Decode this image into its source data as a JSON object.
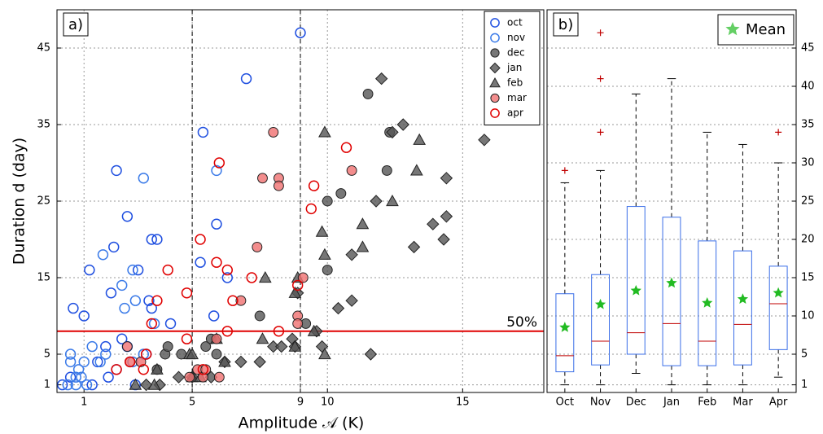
{
  "chart_data": [
    {
      "type": "scatter",
      "label": "a)",
      "xlabel": "Amplitude 𝒜 (K)",
      "ylabel": "Duration d (day)",
      "xlim": [
        0,
        18
      ],
      "ylim": [
        0,
        50
      ],
      "xticks": [
        1,
        5,
        9,
        10,
        15
      ],
      "yticks": [
        1,
        5,
        15,
        25,
        35,
        45
      ],
      "grid": true,
      "vlines": [
        5,
        9
      ],
      "hline": {
        "value": 8,
        "label": "50%",
        "color": "#e00000"
      },
      "legend": "upper right",
      "series": [
        {
          "name": "oct",
          "marker": "circle",
          "filled": false,
          "color": "#1f4fe0",
          "x": [
            9,
            7,
            5.4,
            2.2,
            5.9,
            2.6,
            1.2,
            2.1,
            3.5,
            3.7,
            2.0,
            3.4,
            3.5,
            0.6,
            1.0,
            0.5,
            1.3,
            0.2,
            2.9,
            1.5,
            2.4,
            4.2,
            1.8,
            3.3,
            5.8,
            6.3,
            5.3,
            3.0,
            2.6,
            1.9
          ],
          "values": [
            47,
            41,
            34,
            29,
            22,
            23,
            16,
            19,
            20,
            20,
            13,
            12,
            11,
            11,
            10,
            2,
            1,
            1,
            1,
            4,
            7,
            9,
            6,
            5,
            10,
            15,
            17,
            16,
            6,
            2
          ]
        },
        {
          "name": "nov",
          "marker": "circle",
          "filled": false,
          "color": "#3a7ae8",
          "x": [
            3.2,
            5.9,
            2.4,
            1.7,
            2.8,
            3.6,
            1.1,
            0.7,
            0.4,
            0.8,
            0.5,
            1.0,
            1.6,
            2.2,
            2.8,
            3.2,
            0.5,
            0.7,
            1.8,
            2.5,
            2.9,
            2.7,
            0.9,
            1.3
          ],
          "values": [
            28,
            29,
            14,
            18,
            16,
            9,
            1,
            1,
            1,
            3,
            4,
            4,
            4,
            3,
            4,
            5,
            5,
            2,
            5,
            11,
            12,
            4,
            2,
            6
          ]
        },
        {
          "name": "dec",
          "marker": "circle",
          "filled": true,
          "color": "#555555",
          "x": [
            11.5,
            12.2,
            10.5,
            10,
            10,
            7.5,
            9.2,
            4.0,
            4.6,
            3.7,
            5.5,
            5.7,
            5.9,
            4.1,
            12.3
          ],
          "values": [
            39,
            29,
            26,
            25,
            16,
            10,
            9,
            5,
            5,
            3,
            6,
            7,
            5,
            6,
            34
          ]
        },
        {
          "name": "jan",
          "marker": "diamond",
          "filled": true,
          "color": "#555555",
          "x": [
            12,
            12.8,
            12.4,
            15.8,
            14.4,
            11.8,
            13.9,
            14.4,
            14.3,
            13.2,
            10.9,
            10.9,
            10.4,
            11.6,
            8.9,
            8.7,
            9.6,
            8,
            8.3,
            8.8,
            9.8,
            4.5,
            5.0,
            5.7,
            6.2,
            6.8,
            7.5,
            3.8,
            3.3
          ],
          "values": [
            41,
            35,
            34,
            33,
            28,
            25,
            22,
            23,
            20,
            19,
            18,
            12,
            11,
            5,
            13,
            7,
            8,
            6,
            6,
            6,
            6,
            2,
            2,
            2,
            4,
            4,
            4,
            1,
            1
          ]
        },
        {
          "name": "feb",
          "marker": "triangle",
          "filled": true,
          "color": "#555555",
          "x": [
            9.9,
            13.4,
            13.3,
            12.4,
            9.8,
            11.3,
            11.3,
            9.9,
            8.9,
            8.8,
            7.7,
            7.6,
            8.8,
            9.9,
            9.5,
            5.9,
            4.9,
            5.0,
            5.3,
            6.2,
            3.7,
            3.6,
            2.9,
            5.0
          ],
          "values": [
            34,
            33,
            29,
            25,
            21,
            22,
            19,
            18,
            15,
            13,
            15,
            7,
            6,
            5,
            8,
            7,
            5,
            2,
            2,
            4,
            3,
            1,
            1,
            5
          ]
        },
        {
          "name": "mar",
          "marker": "circle",
          "filled": true,
          "color": "#f07070",
          "x": [
            8,
            7.6,
            8.2,
            10.9,
            8.2,
            7.4,
            9.1,
            8.9,
            8.9,
            5.9,
            6.8,
            5.2,
            4.9,
            6.0,
            5.4,
            2.7,
            3.1,
            2.6,
            5.5
          ],
          "values": [
            34,
            28,
            28,
            29,
            27,
            19,
            15,
            10,
            9,
            7,
            12,
            3,
            2,
            2,
            2,
            4,
            4,
            6,
            3
          ]
        },
        {
          "name": "apr",
          "marker": "circle",
          "filled": false,
          "color": "#e00000",
          "x": [
            10.7,
            6.0,
            9.5,
            9.4,
            5.3,
            5.9,
            6.3,
            4.1,
            7.2,
            4.8,
            3.7,
            6.5,
            8.9,
            3.5,
            8.2,
            6.3,
            4.8,
            3.3,
            3.2,
            2.7,
            2.2,
            5.4
          ],
          "values": [
            32,
            30,
            27,
            24,
            20,
            17,
            16,
            16,
            15,
            13,
            12,
            12,
            14,
            9,
            8,
            8,
            7,
            5,
            3,
            4,
            3,
            3
          ]
        }
      ]
    },
    {
      "type": "box",
      "label": "b)",
      "ylim": [
        0,
        50
      ],
      "yticks": [
        1,
        5,
        10,
        15,
        20,
        25,
        30,
        35,
        40,
        45
      ],
      "grid": true,
      "categories": [
        "Oct",
        "Nov",
        "Dec",
        "Jan",
        "Feb",
        "Mar",
        "Apr"
      ],
      "box_color": "#3a6ee8",
      "median_color": "#c00000",
      "legend": {
        "name": "Mean",
        "color": "#22bb22"
      },
      "series": [
        {
          "whislo": 1,
          "q1": 2.7,
          "med": 4.8,
          "q3": 12.9,
          "whishi": 27.4,
          "mean": 8.5,
          "fliers": [
            29
          ]
        },
        {
          "whislo": 1,
          "q1": 3.6,
          "med": 6.7,
          "q3": 15.4,
          "whishi": 29,
          "mean": 11.5,
          "fliers": [
            34,
            41,
            47
          ]
        },
        {
          "whislo": 2.5,
          "q1": 5,
          "med": 7.8,
          "q3": 24.3,
          "whishi": 39,
          "mean": 13.3,
          "fliers": []
        },
        {
          "whislo": 1,
          "q1": 3.5,
          "med": 9,
          "q3": 22.9,
          "whishi": 41,
          "mean": 14.3,
          "fliers": []
        },
        {
          "whislo": 1,
          "q1": 3.5,
          "med": 6.7,
          "q3": 19.8,
          "whishi": 34,
          "mean": 11.7,
          "fliers": []
        },
        {
          "whislo": 1,
          "q1": 3.6,
          "med": 8.9,
          "q3": 18.5,
          "whishi": 32.4,
          "mean": 12.2,
          "fliers": []
        },
        {
          "whislo": 2,
          "q1": 5.6,
          "med": 11.6,
          "q3": 16.5,
          "whishi": 30,
          "mean": 13,
          "fliers": [
            34
          ]
        }
      ]
    }
  ]
}
